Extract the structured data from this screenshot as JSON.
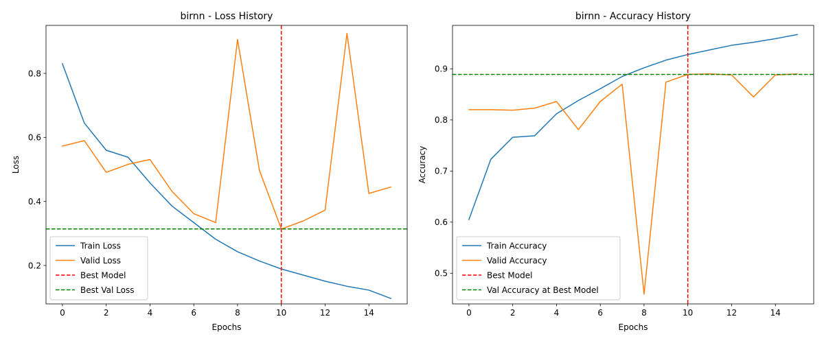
{
  "chart_data": [
    {
      "type": "line",
      "title": "birnn - Loss History",
      "xlabel": "Epochs",
      "ylabel": "Loss",
      "xlim": [
        -0.75,
        15.75
      ],
      "ylim": [
        0.08,
        0.95
      ],
      "xticks": [
        0,
        2,
        4,
        6,
        8,
        10,
        12,
        14
      ],
      "yticks": [
        0.2,
        0.4,
        0.6,
        0.8
      ],
      "ytick_labels": [
        "0.2",
        "0.4",
        "0.6",
        "0.8"
      ],
      "grid": false,
      "legend_position": "lower-left",
      "series": [
        {
          "name": "Train Loss",
          "color": "#1f77b4",
          "style": "solid",
          "x": [
            0,
            1,
            2,
            3,
            4,
            5,
            6,
            7,
            8,
            9,
            10,
            11,
            12,
            13,
            14,
            15
          ],
          "values": [
            0.83,
            0.645,
            0.56,
            0.538,
            0.458,
            0.386,
            0.334,
            0.282,
            0.243,
            0.214,
            0.189,
            0.17,
            0.151,
            0.135,
            0.123,
            0.097
          ]
        },
        {
          "name": "Valid Loss",
          "color": "#ff7f0e",
          "style": "solid",
          "x": [
            0,
            1,
            2,
            3,
            4,
            5,
            6,
            7,
            8,
            9,
            10,
            11,
            12,
            13,
            14,
            15
          ],
          "values": [
            0.573,
            0.59,
            0.491,
            0.516,
            0.531,
            0.432,
            0.362,
            0.334,
            0.906,
            0.497,
            0.314,
            0.339,
            0.373,
            0.925,
            0.425,
            0.445
          ]
        }
      ],
      "reference_lines": [
        {
          "name": "Best Model",
          "orientation": "vertical",
          "value": 10,
          "color": "#ff0000"
        },
        {
          "name": "Best Val Loss",
          "orientation": "horizontal",
          "value": 0.314,
          "color": "#008000"
        }
      ]
    },
    {
      "type": "line",
      "title": "birnn - Accuracy History",
      "xlabel": "Epochs",
      "ylabel": "Accuracy",
      "xlim": [
        -0.75,
        15.75
      ],
      "ylim": [
        0.44,
        0.985
      ],
      "xticks": [
        0,
        2,
        4,
        6,
        8,
        10,
        12,
        14
      ],
      "yticks": [
        0.5,
        0.6,
        0.7,
        0.8,
        0.9
      ],
      "ytick_labels": [
        "0.5",
        "0.6",
        "0.7",
        "0.8",
        "0.9"
      ],
      "grid": false,
      "legend_position": "lower-left",
      "series": [
        {
          "name": "Train Accuracy",
          "color": "#1f77b4",
          "style": "solid",
          "x": [
            0,
            1,
            2,
            3,
            4,
            5,
            6,
            7,
            8,
            9,
            10,
            11,
            12,
            13,
            14,
            15
          ],
          "values": [
            0.605,
            0.723,
            0.766,
            0.769,
            0.812,
            0.838,
            0.861,
            0.885,
            0.902,
            0.917,
            0.928,
            0.937,
            0.946,
            0.952,
            0.959,
            0.967
          ]
        },
        {
          "name": "Valid Accuracy",
          "color": "#ff7f0e",
          "style": "solid",
          "x": [
            0,
            1,
            2,
            3,
            4,
            5,
            6,
            7,
            8,
            9,
            10,
            11,
            12,
            13,
            14,
            15
          ],
          "values": [
            0.82,
            0.82,
            0.819,
            0.823,
            0.836,
            0.781,
            0.836,
            0.87,
            0.459,
            0.874,
            0.889,
            0.89,
            0.888,
            0.845,
            0.888,
            0.89
          ]
        }
      ],
      "reference_lines": [
        {
          "name": "Best Model",
          "orientation": "vertical",
          "value": 10,
          "color": "#ff0000"
        },
        {
          "name": "Val Accuracy at Best Model",
          "orientation": "horizontal",
          "value": 0.889,
          "color": "#008000"
        }
      ]
    }
  ]
}
